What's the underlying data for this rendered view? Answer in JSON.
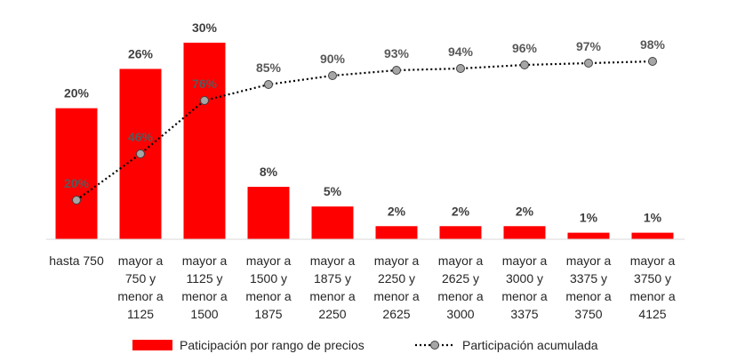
{
  "chart_data": {
    "type": "bar",
    "categories": [
      [
        "hasta 750"
      ],
      [
        "mayor a",
        "750 y",
        "menor a",
        "1125"
      ],
      [
        "mayor a",
        "1125 y",
        "menor a",
        "1500"
      ],
      [
        "mayor a",
        "1500 y",
        "menor a",
        "1875"
      ],
      [
        "mayor a",
        "1875 y",
        "menor a",
        "2250"
      ],
      [
        "mayor a",
        "2250 y",
        "menor a",
        "2625"
      ],
      [
        "mayor a",
        "2625 y",
        "menor a",
        "3000"
      ],
      [
        "mayor a",
        "3000 y",
        "menor a",
        "3375"
      ],
      [
        "mayor a",
        "3375 y",
        "menor a",
        "3750"
      ],
      [
        "mayor a",
        "3750 y",
        "menor a",
        "4125"
      ]
    ],
    "series": [
      {
        "name": "Paticipación por rango de precios",
        "kind": "bar",
        "color": "#ff0000",
        "values": [
          20,
          26,
          30,
          8,
          5,
          2,
          2,
          2,
          1,
          1
        ],
        "labels": [
          "20%",
          "26%",
          "30%",
          "8%",
          "5%",
          "2%",
          "2%",
          "2%",
          "1%",
          "1%"
        ]
      },
      {
        "name": "Participación acumulada",
        "kind": "line",
        "color": "#000000",
        "marker_color": "#a6a6a6",
        "values": [
          20,
          46,
          76,
          85,
          90,
          93,
          94,
          96,
          97,
          98
        ],
        "labels": [
          "20%",
          "46%",
          "76%",
          "85%",
          "90%",
          "93%",
          "94%",
          "96%",
          "97%",
          "98%"
        ]
      }
    ],
    "ylim_bar": [
      0,
      30
    ],
    "ylim_line": [
      0,
      100
    ],
    "title": "",
    "xlabel": "",
    "ylabel": "",
    "grid": false,
    "legend": "bottom"
  }
}
